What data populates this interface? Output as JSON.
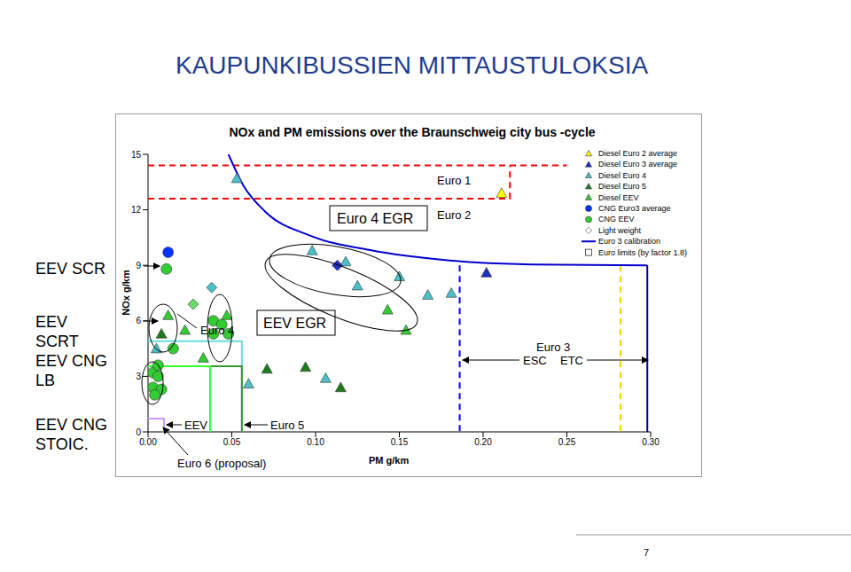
{
  "title": "KAUPUNKIBUSSIEN MITTAUSTULOKSIA",
  "page_number": "7",
  "side_labels": [
    "EEV SCR",
    "EEV SCRT",
    "EEV CNG LB",
    "EEV CNG STOIC."
  ],
  "chart_data": {
    "type": "scatter",
    "title": "NOx and PM emissions over the Braunschweig city bus -cycle",
    "x_label": "PM g/km",
    "y_label": "NOx g/km",
    "xlim": [
      0,
      0.3
    ],
    "xticks": [
      {
        "value": 0,
        "label": "0.00"
      },
      {
        "value": 0.05,
        "label": "0.05"
      },
      {
        "value": 0.1,
        "label": "0.10"
      },
      {
        "value": 0.15,
        "label": "0.15"
      },
      {
        "value": 0.2,
        "label": "0.20"
      },
      {
        "value": 0.25,
        "label": "0.25"
      },
      {
        "value": 0.3,
        "label": "0.30"
      }
    ],
    "ylim": [
      0,
      15
    ],
    "yticks": [
      0,
      3,
      6,
      9,
      12,
      15
    ],
    "grid": false,
    "legend": "upper right",
    "annotations": [
      "Euro 1",
      "Euro 2",
      "Euro 4 EGR",
      "Euro 4",
      "EEV EGR",
      "Euro 3",
      "ESC",
      "ETC",
      "EEV",
      "Euro 5",
      "Euro 6 (proposal)"
    ],
    "series": [
      {
        "name": "Diesel Euro 2 average",
        "color": "#ffff00",
        "marker": "triangle",
        "x": [
          0.211
        ],
        "values": [
          12.9
        ]
      },
      {
        "name": "Diesel Euro 3 average",
        "color": "#1a2fbf",
        "marker": "triangle",
        "x": [
          0.202
        ],
        "values": [
          8.6
        ]
      },
      {
        "name": "Diesel Euro 4",
        "color": "#4bc0c8",
        "marker": "triangle",
        "x": [
          0.053,
          0.098,
          0.118,
          0.125,
          0.15,
          0.167,
          0.181,
          0.106,
          0.06,
          0.005
        ],
        "values": [
          13.7,
          9.8,
          9.2,
          7.9,
          8.4,
          7.4,
          7.5,
          2.9,
          2.6,
          4.5
        ]
      },
      {
        "name": "Diesel Euro 5",
        "color": "#1e7b1e",
        "marker": "triangle",
        "x": [
          0.071,
          0.094,
          0.115,
          0.008
        ],
        "values": [
          3.4,
          3.5,
          2.4,
          5.3
        ]
      },
      {
        "name": "Diesel EEV",
        "color": "#33cc33",
        "marker": "triangle",
        "x": [
          0.012,
          0.047,
          0.022,
          0.033,
          0.143,
          0.154
        ],
        "values": [
          6.3,
          6.3,
          5.5,
          4.0,
          6.6,
          5.5
        ]
      },
      {
        "name": "CNG Euro3 average",
        "color": "#0033ff",
        "marker": "circle",
        "x": [
          0.012
        ],
        "values": [
          9.7
        ]
      },
      {
        "name": "CNG EEV",
        "color": "#33cc33",
        "marker": "circle",
        "x": [
          0.011,
          0.039,
          0.044,
          0.039,
          0.048,
          0.015,
          0.003,
          0.006,
          0.003,
          0.008,
          0.004,
          0.006
        ],
        "values": [
          8.8,
          6.0,
          5.8,
          5.3,
          5.3,
          4.5,
          3.2,
          3.0,
          2.4,
          2.3,
          2.0,
          3.6
        ]
      },
      {
        "name": "Light weight",
        "color": "#ffffff",
        "marker": "diamond",
        "colors": [
          "#1f2fbf",
          "#4bc0c8",
          "#66dd66"
        ],
        "x": [
          0.113,
          0.038,
          0.027
        ],
        "values": [
          9.0,
          7.8,
          6.9
        ]
      },
      {
        "name": "Euro 3 calibration",
        "type": "line",
        "color": "#0000cc",
        "line_style": "solid",
        "x": [
          0.048,
          0.057,
          0.07,
          0.097,
          0.134,
          0.176,
          0.229,
          0.298
        ],
        "values": [
          15,
          13.3,
          11.9,
          10.6,
          9.8,
          9.3,
          9.05,
          9.0
        ]
      },
      {
        "name": "Euro limits (by factor 1.8)",
        "type": "line",
        "marker": "square",
        "color": "#ffffff",
        "segments": [
          {
            "color": "#ff0000",
            "line_style": "dashed",
            "x": [
              0,
              0.25
            ],
            "values": [
              14.4,
              14.4
            ]
          },
          {
            "color": "#ff0000",
            "line_style": "dashed",
            "x": [
              0,
              0.216,
              0.216
            ],
            "values": [
              12.6,
              12.6,
              14.4
            ]
          },
          {
            "color": "#ffcc00",
            "line_style": "dashed",
            "x": [
              0.282,
              0.282
            ],
            "values": [
              9.0,
              0
            ]
          },
          {
            "color": "#0000ff",
            "line_style": "dashed",
            "x": [
              0.186,
              0.186
            ],
            "values": [
              9.0,
              0
            ]
          },
          {
            "color": "#00008b",
            "line_style": "solid",
            "x": [
              0.298,
              0.298
            ],
            "values": [
              9.0,
              0
            ]
          },
          {
            "color": "#66dddd",
            "line_style": "solid",
            "x": [
              0,
              0.056,
              0.056
            ],
            "values": [
              4.9,
              4.9,
              0
            ]
          },
          {
            "color": "#339933",
            "line_style": "solid",
            "x": [
              0,
              0.056,
              0.056
            ],
            "values": [
              3.55,
              3.55,
              0
            ]
          },
          {
            "color": "#33ff33",
            "line_style": "solid",
            "x": [
              0,
              0.037,
              0.037
            ],
            "values": [
              3.55,
              3.55,
              0
            ]
          },
          {
            "color": "#cc99ff",
            "line_style": "solid",
            "x": [
              0,
              0.0095,
              0.0095
            ],
            "values": [
              0.72,
              0.72,
              0
            ]
          }
        ]
      }
    ]
  }
}
